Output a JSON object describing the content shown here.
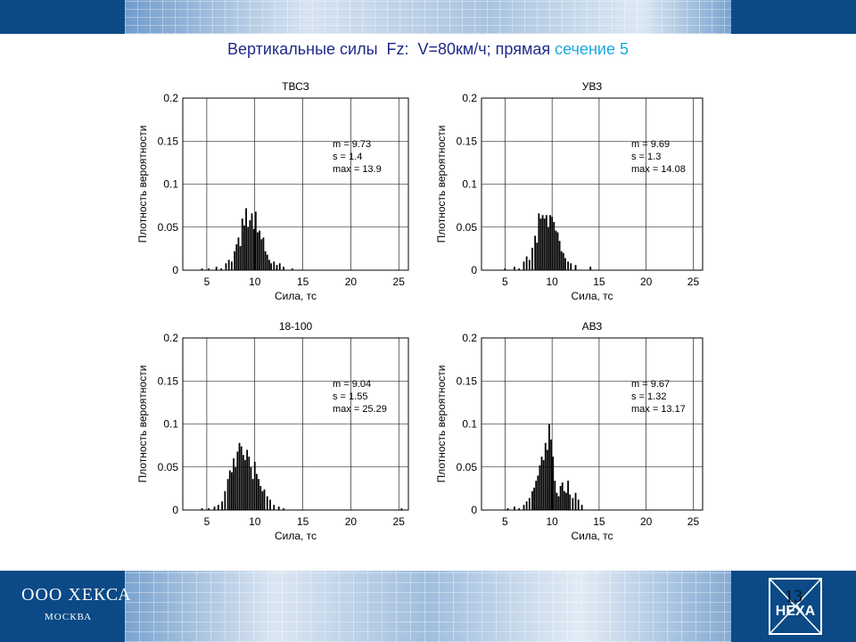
{
  "title": {
    "main": "Вертикальные силы  Fz:  V=80км/ч; прямая",
    "accent": "сечение 5"
  },
  "footer": {
    "company": "ООО ХЕКСА",
    "city": "МОСКВА",
    "page_number": "13",
    "logo_text": "HEXA"
  },
  "colors": {
    "banner": "#0b4a86",
    "title": "#1f2a8a",
    "accent": "#19a9e2",
    "bars": "#000000"
  },
  "chart_data": [
    {
      "type": "bar",
      "title": "ТВСЗ",
      "xlabel": "Сила, тс",
      "ylabel": "Плотность вероятности",
      "xlim": [
        2.5,
        26
      ],
      "ylim": [
        0,
        0.2
      ],
      "xticks": [
        5,
        10,
        15,
        20,
        25
      ],
      "yticks": [
        0,
        0.05,
        0.1,
        0.15,
        0.2
      ],
      "grid": true,
      "stats": [
        "m = 9.73",
        "s  = 1.4",
        "max  = 13.9"
      ],
      "x": [
        4.5,
        5.2,
        6.0,
        6.5,
        7.0,
        7.3,
        7.6,
        7.9,
        8.1,
        8.3,
        8.5,
        8.7,
        8.9,
        9.1,
        9.3,
        9.5,
        9.7,
        9.9,
        10.1,
        10.3,
        10.5,
        10.7,
        10.9,
        11.1,
        11.3,
        11.5,
        11.7,
        12.0,
        12.3,
        12.6,
        13.0,
        13.9
      ],
      "values": [
        0.002,
        0.002,
        0.004,
        0.002,
        0.008,
        0.012,
        0.01,
        0.022,
        0.03,
        0.038,
        0.028,
        0.06,
        0.052,
        0.072,
        0.05,
        0.058,
        0.066,
        0.048,
        0.068,
        0.044,
        0.046,
        0.036,
        0.038,
        0.022,
        0.018,
        0.012,
        0.008,
        0.01,
        0.006,
        0.008,
        0.004,
        0.002
      ]
    },
    {
      "type": "bar",
      "title": "УВЗ",
      "xlabel": "Сила, тс",
      "ylabel": "Плотность вероятности",
      "xlim": [
        2.5,
        26
      ],
      "ylim": [
        0,
        0.2
      ],
      "xticks": [
        5,
        10,
        15,
        20,
        25
      ],
      "yticks": [
        0,
        0.05,
        0.1,
        0.15,
        0.2
      ],
      "grid": true,
      "stats": [
        "m = 9.69",
        "s  = 1.3",
        "max  = 14.08"
      ],
      "x": [
        5.0,
        6.0,
        6.5,
        7.0,
        7.3,
        7.6,
        7.9,
        8.2,
        8.4,
        8.6,
        8.8,
        9.0,
        9.2,
        9.4,
        9.6,
        9.8,
        10.0,
        10.2,
        10.4,
        10.6,
        10.8,
        11.0,
        11.2,
        11.4,
        11.7,
        12.0,
        12.5,
        14.08
      ],
      "values": [
        0.002,
        0.004,
        0.002,
        0.01,
        0.016,
        0.012,
        0.026,
        0.04,
        0.032,
        0.066,
        0.06,
        0.064,
        0.06,
        0.064,
        0.05,
        0.064,
        0.062,
        0.056,
        0.046,
        0.044,
        0.034,
        0.022,
        0.02,
        0.014,
        0.01,
        0.008,
        0.006,
        0.004
      ]
    },
    {
      "type": "bar",
      "title": "18-100",
      "xlabel": "Сила, тс",
      "ylabel": "Плотность вероятности",
      "xlim": [
        2.5,
        26
      ],
      "ylim": [
        0,
        0.2
      ],
      "xticks": [
        5,
        10,
        15,
        20,
        25
      ],
      "yticks": [
        0,
        0.05,
        0.1,
        0.15,
        0.2
      ],
      "grid": true,
      "stats": [
        "m = 9.04",
        "s  = 1.55",
        "max  = 25.29"
      ],
      "x": [
        4.5,
        5.2,
        5.8,
        6.2,
        6.6,
        6.9,
        7.2,
        7.4,
        7.6,
        7.8,
        8.0,
        8.2,
        8.4,
        8.6,
        8.8,
        9.0,
        9.2,
        9.4,
        9.6,
        9.8,
        10.0,
        10.2,
        10.4,
        10.6,
        10.8,
        11.0,
        11.3,
        11.6,
        12.0,
        12.5,
        13.0,
        25.29
      ],
      "values": [
        0.002,
        0.002,
        0.004,
        0.006,
        0.01,
        0.022,
        0.036,
        0.046,
        0.044,
        0.06,
        0.05,
        0.068,
        0.078,
        0.074,
        0.064,
        0.058,
        0.07,
        0.062,
        0.05,
        0.036,
        0.056,
        0.042,
        0.036,
        0.028,
        0.022,
        0.024,
        0.016,
        0.012,
        0.006,
        0.004,
        0.002,
        0.002
      ]
    },
    {
      "type": "bar",
      "title": "АВЗ",
      "xlabel": "Сила, тс",
      "ylabel": "Плотность вероятности",
      "xlim": [
        2.5,
        26
      ],
      "ylim": [
        0,
        0.2
      ],
      "xticks": [
        5,
        10,
        15,
        20,
        25
      ],
      "yticks": [
        0,
        0.05,
        0.1,
        0.15,
        0.2
      ],
      "grid": true,
      "stats": [
        "m = 9.67",
        "s  = 1.32",
        "max  = 13.17"
      ],
      "x": [
        5.3,
        6.0,
        6.5,
        7.0,
        7.3,
        7.6,
        7.9,
        8.1,
        8.3,
        8.5,
        8.7,
        8.9,
        9.1,
        9.3,
        9.5,
        9.7,
        9.9,
        10.1,
        10.3,
        10.5,
        10.7,
        10.9,
        11.1,
        11.3,
        11.5,
        11.7,
        11.9,
        12.2,
        12.5,
        12.8,
        13.17
      ],
      "values": [
        0.002,
        0.004,
        0.002,
        0.006,
        0.01,
        0.014,
        0.022,
        0.026,
        0.034,
        0.04,
        0.052,
        0.062,
        0.058,
        0.078,
        0.07,
        0.1,
        0.082,
        0.062,
        0.034,
        0.02,
        0.016,
        0.028,
        0.032,
        0.022,
        0.02,
        0.034,
        0.018,
        0.014,
        0.02,
        0.012,
        0.006
      ]
    }
  ]
}
